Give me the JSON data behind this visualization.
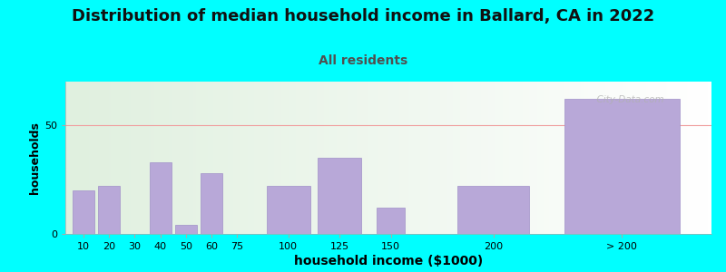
{
  "title": "Distribution of median household income in Ballard, CA in 2022",
  "subtitle": "All residents",
  "xlabel": "household income ($1000)",
  "ylabel": "households",
  "background_color": "#00ffff",
  "bar_color": "#b8a8d8",
  "bar_edge_color": "#a090c8",
  "title_fontsize": 13,
  "subtitle_fontsize": 10,
  "subtitle_color": "#505050",
  "xlabel_fontsize": 10,
  "ylabel_fontsize": 9,
  "tick_fontsize": 8,
  "categories": [
    "10",
    "20",
    "30",
    "40",
    "50",
    "60",
    "75",
    "100",
    "125",
    "150",
    "200",
    "> 200"
  ],
  "values": [
    20,
    22,
    0,
    33,
    4,
    28,
    0,
    22,
    35,
    12,
    22,
    62
  ],
  "bar_positions": [
    1,
    2,
    3,
    4,
    5,
    6,
    7,
    9,
    11,
    13,
    17,
    22
  ],
  "bar_widths": [
    0.85,
    0.85,
    0.85,
    0.85,
    0.85,
    0.85,
    0.85,
    1.7,
    1.7,
    1.1,
    2.8,
    4.5
  ],
  "ylim": [
    0,
    70
  ],
  "yticks": [
    0,
    50
  ],
  "grid_line_y": 50,
  "grid_color": "#f0a0a0",
  "watermark": "  City-Data.com",
  "watermark_color": "#b0b0b0",
  "xlim_left": 0.3,
  "xlim_right": 25.5
}
